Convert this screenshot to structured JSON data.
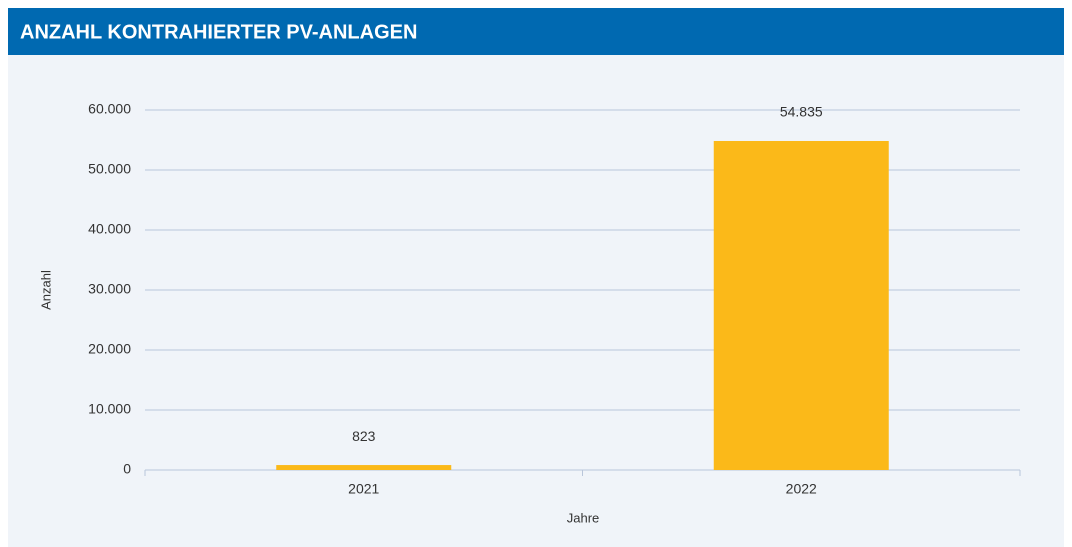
{
  "chart_data": {
    "type": "bar",
    "title": "ANZAHL KONTRAHIERTER PV-ANLAGEN",
    "xlabel": "Jahre",
    "ylabel": "Anzahl",
    "categories": [
      "2021",
      "2022"
    ],
    "values": [
      823,
      54835
    ],
    "value_labels": [
      "823",
      "54.835"
    ],
    "color": "#fbb919",
    "ylim": [
      0,
      60000
    ],
    "yticks": [
      0,
      {
        "value": 10000,
        "label": "10.000"
      },
      {
        "value": 20000,
        "label": "20.000"
      },
      {
        "value": 30000,
        "label": "30.000"
      },
      {
        "value": 40000,
        "label": "40.000"
      },
      {
        "value": 50000,
        "label": "50.000"
      },
      {
        "value": 60000,
        "label": "60.000"
      }
    ],
    "grid": true
  }
}
